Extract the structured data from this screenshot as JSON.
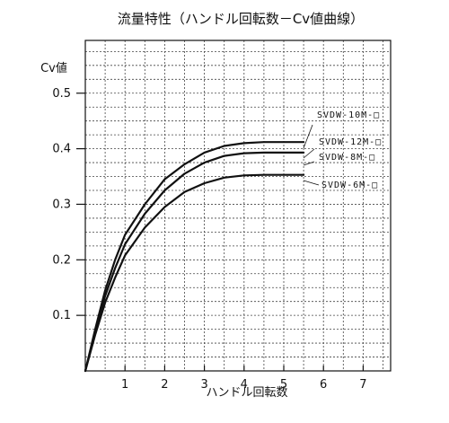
{
  "chart_data": {
    "type": "line",
    "title": "流量特性（ハンドル回転数－Cv値曲線）",
    "xlabel": "ハンドル回転数",
    "ylabel": "Cv値",
    "xlim": [
      0,
      7.5
    ],
    "ylim": [
      0,
      0.6
    ],
    "x_ticks": [
      1,
      2,
      3,
      4,
      5,
      6,
      7
    ],
    "y_ticks": [
      0.1,
      0.2,
      0.3,
      0.4,
      0.5
    ],
    "x_tick_labels": [
      "1",
      "2",
      "3",
      "4",
      "5",
      "6",
      "7"
    ],
    "y_tick_labels": [
      "0.1",
      "0.2",
      "0.3",
      "0.4",
      "0.5"
    ],
    "grid": true,
    "series": [
      {
        "name": "SVDW-10M-□",
        "x": [
          0,
          0.25,
          0.5,
          0.75,
          1.0,
          1.5,
          2.0,
          2.5,
          3.0,
          3.5,
          4.0,
          4.5,
          5.0,
          5.5
        ],
        "y": [
          0,
          0.075,
          0.145,
          0.2,
          0.245,
          0.3,
          0.345,
          0.372,
          0.393,
          0.405,
          0.41,
          0.412,
          0.412,
          0.412
        ]
      },
      {
        "name": "SVDW-12M-□",
        "x": [
          0,
          0.25,
          0.5,
          0.75,
          1.0,
          1.5,
          2.0,
          2.5,
          3.0,
          3.5,
          4.0,
          4.5,
          5.0,
          5.5
        ],
        "y": [
          0,
          0.07,
          0.135,
          0.185,
          0.228,
          0.283,
          0.325,
          0.355,
          0.375,
          0.387,
          0.392,
          0.393,
          0.393,
          0.393
        ]
      },
      {
        "name": "SVDW-8M-□",
        "x": [
          0,
          0.25,
          0.5,
          0.75,
          1.0,
          1.5,
          2.0,
          2.5,
          3.0,
          3.5,
          4.0,
          4.5,
          5.0,
          5.5
        ],
        "y": [
          0,
          0.065,
          0.123,
          0.168,
          0.208,
          0.258,
          0.295,
          0.322,
          0.338,
          0.348,
          0.352,
          0.353,
          0.353,
          0.353
        ]
      },
      {
        "name": "SVDW-6M-□",
        "x": [],
        "y": []
      }
    ]
  }
}
